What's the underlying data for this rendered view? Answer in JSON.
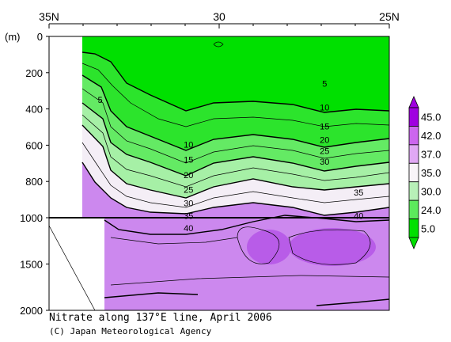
{
  "chart_data": {
    "type": "contour",
    "title": "Nitrate along 137°E line, April 2006",
    "credit": "(C) Japan Meteorological Agency",
    "x_axis": {
      "ticks": [
        {
          "value": 35,
          "label": "35N"
        },
        {
          "value": 30,
          "label": "30"
        },
        {
          "value": 25,
          "label": "25N"
        }
      ],
      "range": [
        35,
        25
      ]
    },
    "y_axis": {
      "unit_label": "(m)",
      "ticks": [
        0,
        200,
        400,
        600,
        800,
        1000,
        1500,
        2000
      ],
      "range": [
        0,
        2000
      ],
      "axis_break_at": 1000
    },
    "colorbar": {
      "labels": [
        "45.0",
        "42.0",
        "37.0",
        "35.0",
        "30.0",
        "24.0",
        "5.0"
      ],
      "colors": [
        "#a000e0",
        "#cc66ee",
        "#e0a8f4",
        "#f8f4f8",
        "#b8f0b8",
        "#5cea5c",
        "#00e000"
      ]
    },
    "contour_labels": [
      {
        "text": "5",
        "lat": 26.9,
        "depth": 260
      },
      {
        "text": "5",
        "lat": 33.5,
        "depth": 350
      },
      {
        "text": "10",
        "lat": 26.9,
        "depth": 390
      },
      {
        "text": "10",
        "lat": 30.9,
        "depth": 595
      },
      {
        "text": "15",
        "lat": 26.9,
        "depth": 495
      },
      {
        "text": "15",
        "lat": 30.9,
        "depth": 680
      },
      {
        "text": "20",
        "lat": 26.9,
        "depth": 570
      },
      {
        "text": "20",
        "lat": 30.9,
        "depth": 765
      },
      {
        "text": "25",
        "lat": 26.9,
        "depth": 630
      },
      {
        "text": "25",
        "lat": 30.9,
        "depth": 845
      },
      {
        "text": "30",
        "lat": 26.9,
        "depth": 690
      },
      {
        "text": "30",
        "lat": 30.9,
        "depth": 920
      },
      {
        "text": "35",
        "lat": 25.9,
        "depth": 860
      },
      {
        "text": "35",
        "lat": 30.9,
        "depth": 990
      },
      {
        "text": "40",
        "lat": 25.9,
        "depth": 990
      },
      {
        "text": "40",
        "lat": 30.9,
        "depth": 1110
      }
    ]
  }
}
